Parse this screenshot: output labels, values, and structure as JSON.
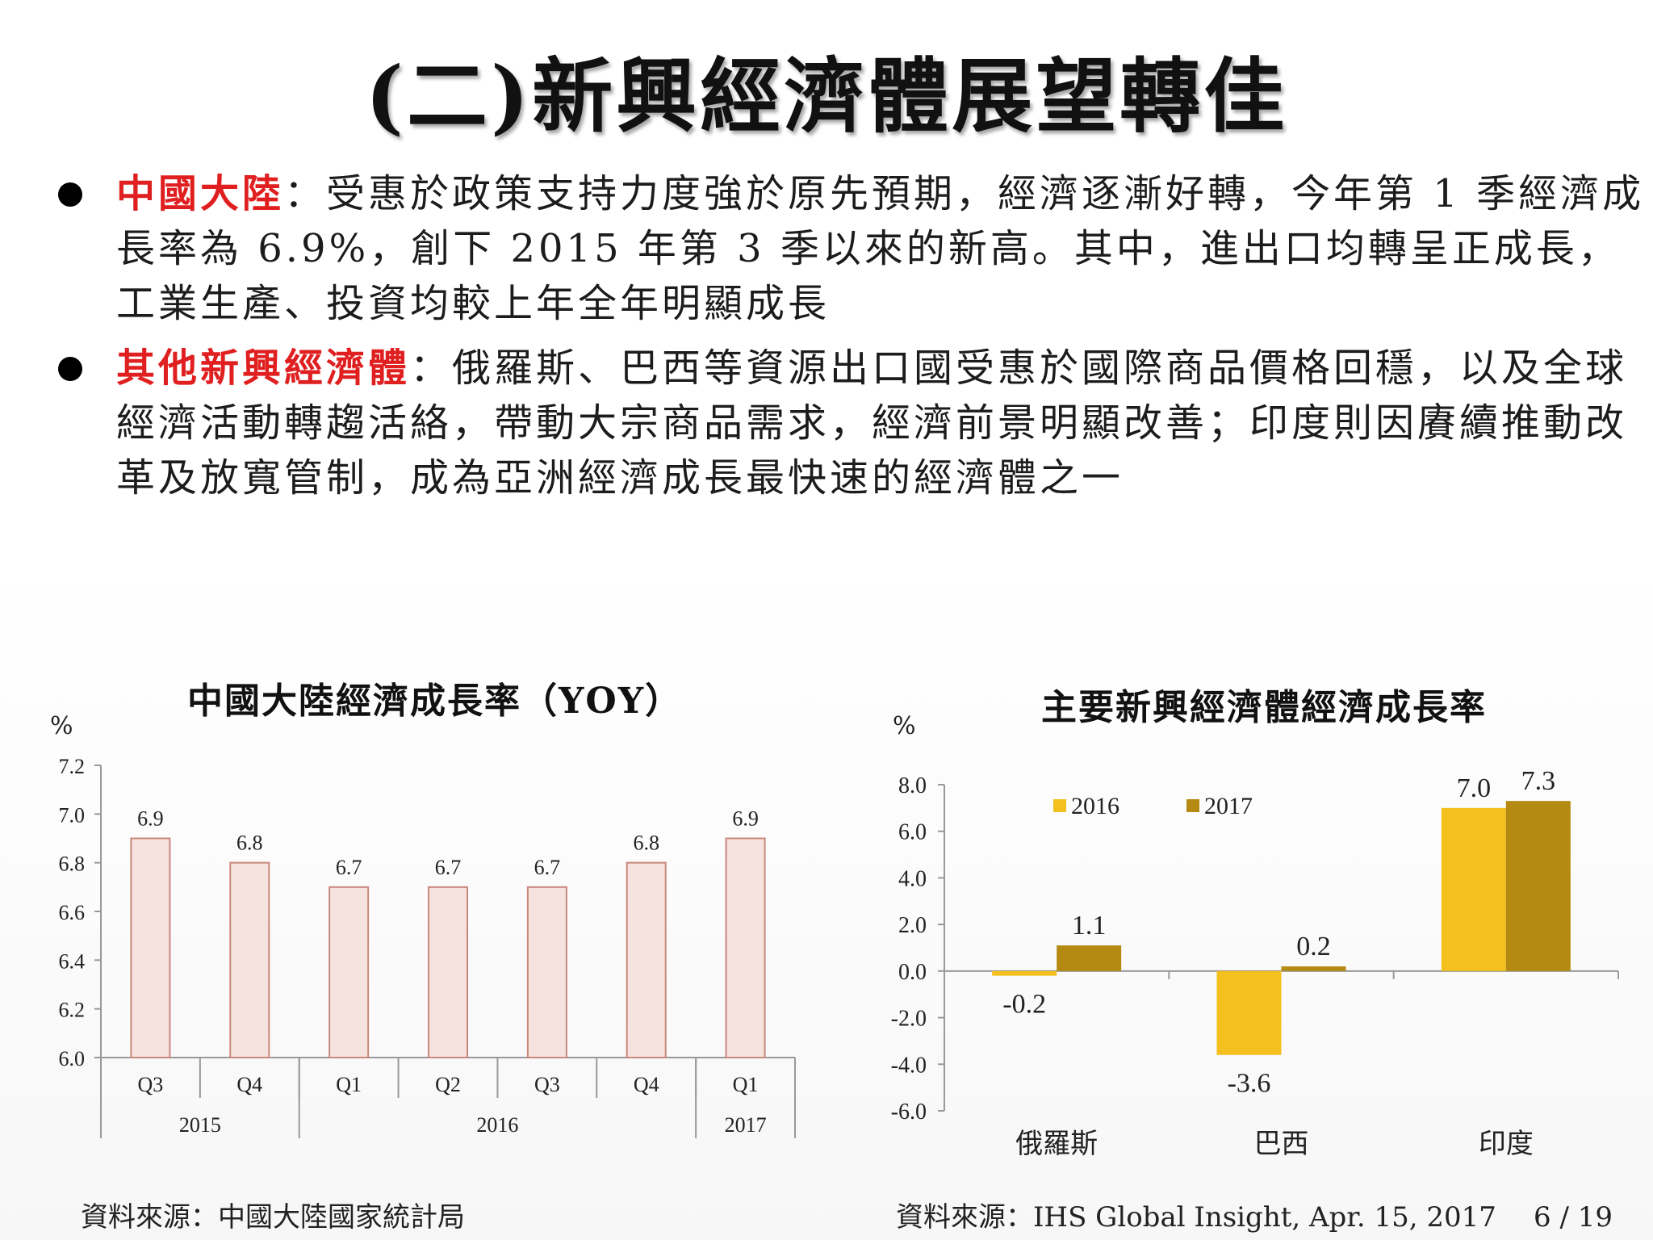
{
  "title": "(二)新興經濟體展望轉佳",
  "bullets": [
    {
      "highlight": "中國大陸",
      "text": "：受惠於政策支持力度強於原先預期，經濟逐漸好轉，今年第 1 季經濟成長率為 6.9%，創下 2015 年第 3 季以來的新高。其中，進出口均轉呈正成長，工業生產、投資均較上年全年明顯成長"
    },
    {
      "highlight": "其他新興經濟體",
      "text": "：俄羅斯、巴西等資源出口國受惠於國際商品價格回穩，以及全球經濟活動轉趨活絡，帶動大宗商品需求，經濟前景明顯改善；印度則因賡續推動改革及放寬管制，成為亞洲經濟成長最快速的經濟體之一"
    }
  ],
  "colors": {
    "highlight_red": "#e02020",
    "bar_pink_fill": "#f6e3df",
    "bar_pink_stroke": "#c9887c",
    "series_2016": "#f4c01e",
    "series_2017": "#b48a12"
  },
  "chart_data": [
    {
      "type": "bar",
      "title": "中國大陸經濟成長率（YOY）",
      "unit": "%",
      "categories": [
        "Q3",
        "Q4",
        "Q1",
        "Q2",
        "Q3",
        "Q4",
        "Q1"
      ],
      "year_groups": [
        {
          "label": "2015",
          "span": 2
        },
        {
          "label": "2016",
          "span": 4
        },
        {
          "label": "2017",
          "span": 1
        }
      ],
      "values": [
        6.9,
        6.8,
        6.7,
        6.7,
        6.7,
        6.8,
        6.9
      ],
      "value_labels": [
        "6.9",
        "6.8",
        "6.7",
        "6.7",
        "6.7",
        "6.8",
        "6.9"
      ],
      "ylim": [
        6.0,
        7.2
      ],
      "yticks": [
        "6.0",
        "6.2",
        "6.4",
        "6.6",
        "6.8",
        "7.0",
        "7.2"
      ],
      "grid": false,
      "source": "資料來源：中國大陸國家統計局"
    },
    {
      "type": "bar",
      "title": "主要新興經濟體經濟成長率",
      "unit": "%",
      "categories": [
        "俄羅斯",
        "巴西",
        "印度"
      ],
      "series": [
        {
          "name": "2016",
          "values": [
            -0.2,
            -3.6,
            7.0
          ],
          "labels": [
            "-0.2",
            "-3.6",
            "7.0"
          ]
        },
        {
          "name": "2017",
          "values": [
            1.1,
            0.2,
            7.3
          ],
          "labels": [
            "1.1",
            "0.2",
            "7.3"
          ]
        }
      ],
      "ylim": [
        -6.0,
        8.0
      ],
      "yticks": [
        "-6.0",
        "-4.0",
        "-2.0",
        "0.0",
        "2.0",
        "4.0",
        "6.0",
        "8.0"
      ],
      "legend": "top",
      "grid": false,
      "source": "資料來源：IHS Global Insight, Apr. 15, 2017"
    }
  ],
  "page_number": "6 / 19"
}
